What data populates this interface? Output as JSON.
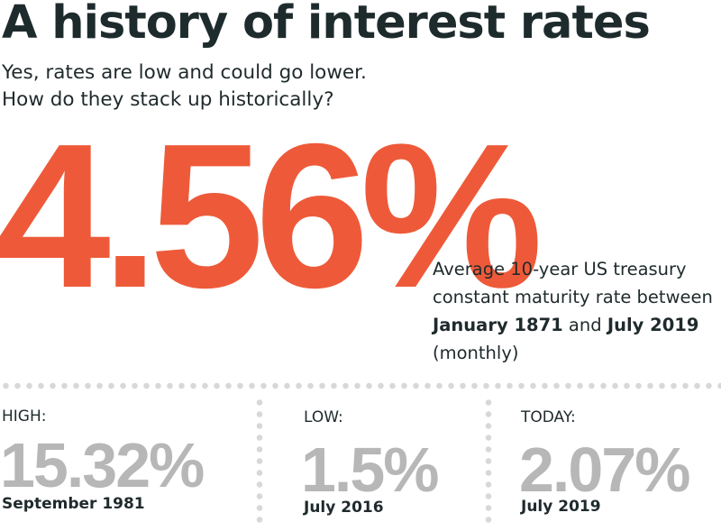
{
  "title": "A history of interest rates",
  "subtitle": {
    "line1": "Yes, rates are low and could go lower.",
    "line2": "How do they stack up historically?"
  },
  "headline": {
    "value": "4.56%",
    "description": {
      "part1": "Average 10-year US treasury constant maturity rate between ",
      "start": "January 1871",
      "part2": " and ",
      "end": "July 2019",
      "part3": " (monthly)"
    }
  },
  "stats": [
    {
      "label": "HIGH:",
      "value": "15.32%",
      "date": "September 1981"
    },
    {
      "label": "LOW:",
      "value": "1.5%",
      "date": "July 2016"
    },
    {
      "label": "TODAY:",
      "value": "2.07%",
      "date": "July 2019"
    }
  ],
  "colors": {
    "accent": "#ee5a39",
    "title": "#1e2b2d",
    "stat_value": "#b7b7b7",
    "divider": "#d8d8d8"
  }
}
